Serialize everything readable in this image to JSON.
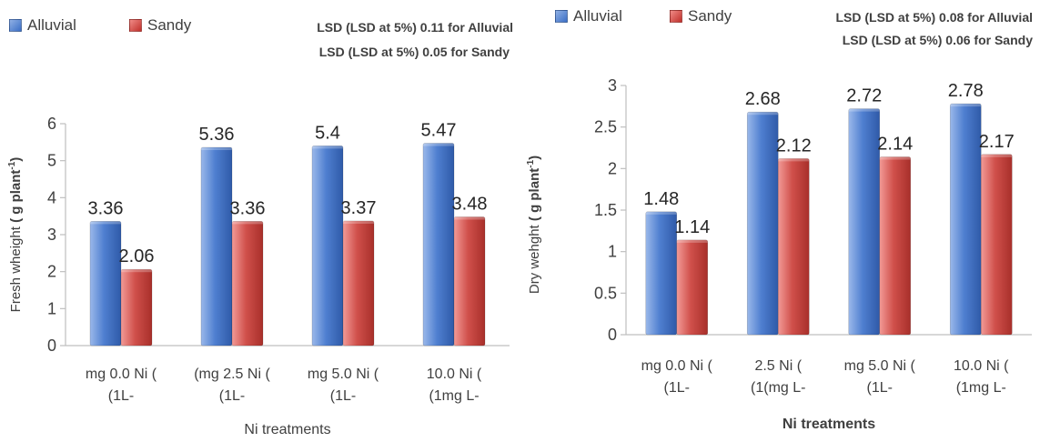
{
  "colors": {
    "alluvial": "#4472C4",
    "sandy": "#C0504D"
  },
  "chart_data": [
    {
      "type": "bar",
      "legend": {
        "alluvial": "Alluvial",
        "sandy": "Sandy"
      },
      "lsd": [
        "LSD (LSD at 5%) 0.11 for Alluvial",
        "LSD (LSD at 5%)  0.05 for Sandy"
      ],
      "categories": [
        [
          "mg 0.0 Ni (",
          "(1L-"
        ],
        [
          "(mg 2.5 Ni (",
          "(1L-"
        ],
        [
          "mg 5.0 Ni (",
          "(1L-"
        ],
        [
          "10.0 Ni (",
          "(1mg L-"
        ]
      ],
      "series": [
        {
          "name": "Alluvial",
          "values": [
            3.36,
            5.36,
            5.4,
            5.47
          ]
        },
        {
          "name": "Sandy",
          "values": [
            2.06,
            3.36,
            3.37,
            3.48
          ]
        }
      ],
      "value_labels": {
        "Alluvial": [
          "3.36",
          "5.36",
          "5.4",
          "5.47"
        ],
        "Sandy": [
          "2.06",
          "3.36",
          "3.37",
          "3.48"
        ]
      },
      "ylabel": "Fresh wheight",
      "ylabel_unit": "( g plant",
      "ylabel_sup": "-1",
      "ylabel_close": ")",
      "xlabel": "Ni treatments",
      "ylim": [
        0,
        6
      ],
      "yticks": [
        "0",
        "1",
        "2",
        "3",
        "4",
        "5",
        "6"
      ]
    },
    {
      "type": "bar",
      "legend": {
        "alluvial": "Alluvial",
        "sandy": "Sandy"
      },
      "lsd": [
        "LSD (LSD at 5%) 0.08 for Alluvial",
        "LSD (LSD at 5%)  0.06 for Sandy"
      ],
      "categories": [
        [
          "mg 0.0 Ni (",
          "(1L-"
        ],
        [
          "2.5  Ni (",
          "(1(mg L-"
        ],
        [
          "mg 5.0 Ni (",
          "(1L-"
        ],
        [
          "10.0  Ni (",
          "(1mg L-"
        ]
      ],
      "series": [
        {
          "name": "Alluvial",
          "values": [
            1.48,
            2.68,
            2.72,
            2.78
          ]
        },
        {
          "name": "Sandy",
          "values": [
            1.14,
            2.12,
            2.14,
            2.17
          ]
        }
      ],
      "value_labels": {
        "Alluvial": [
          "1.48",
          "2.68",
          "2.72",
          "2.78"
        ],
        "Sandy": [
          "1.14",
          "2.12",
          "2.14",
          "2.17"
        ]
      },
      "ylabel": "Dry wehght",
      "ylabel_unit": "( g plant",
      "ylabel_sup": "-1",
      "ylabel_close": ")",
      "xlabel": "Ni treatments",
      "ylim": [
        0,
        3
      ],
      "yticks": [
        "0",
        "0.5",
        "1",
        "1.5",
        "2",
        "2.5",
        "3"
      ]
    }
  ]
}
